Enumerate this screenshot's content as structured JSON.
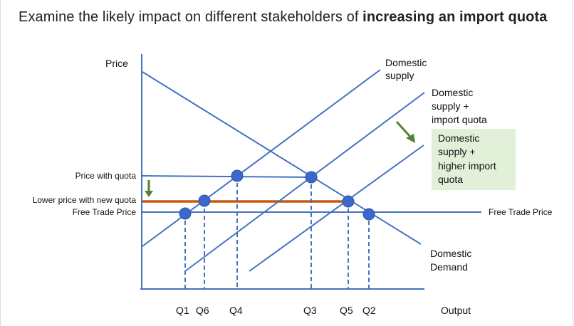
{
  "title": {
    "prefix": "Examine the likely impact on different stakeholders of ",
    "bold": "increasing an import quota"
  },
  "axes": {
    "y_label": "Price",
    "x_label": "Output"
  },
  "price_labels": {
    "price_with_quota": "Price with quota",
    "lower_price": "Lower price with new quota",
    "free_trade_left": "Free Trade Price",
    "free_trade_right": "Free Trade Price"
  },
  "curve_labels": {
    "domestic_supply": [
      "Domestic",
      "supply"
    ],
    "supply_plus_quota": [
      "Domestic",
      "supply +",
      "import quota"
    ],
    "supply_plus_higher_quota": [
      "Domestic",
      "supply +",
      "higher import",
      "quota"
    ],
    "domestic_demand": [
      "Domestic",
      "Demand"
    ]
  },
  "quantity_labels": [
    "Q1",
    "Q6",
    "Q4",
    "Q3",
    "Q5",
    "Q2"
  ],
  "colors": {
    "curve": "#4472c4",
    "point": "#3a68cc",
    "new_price_line": "#c55a11",
    "arrow": "#548235",
    "note_bg": "#e2efd9",
    "axis": "#4472c4"
  },
  "icons": [
    "down-arrow-icon",
    "diagonal-arrow-icon"
  ]
}
